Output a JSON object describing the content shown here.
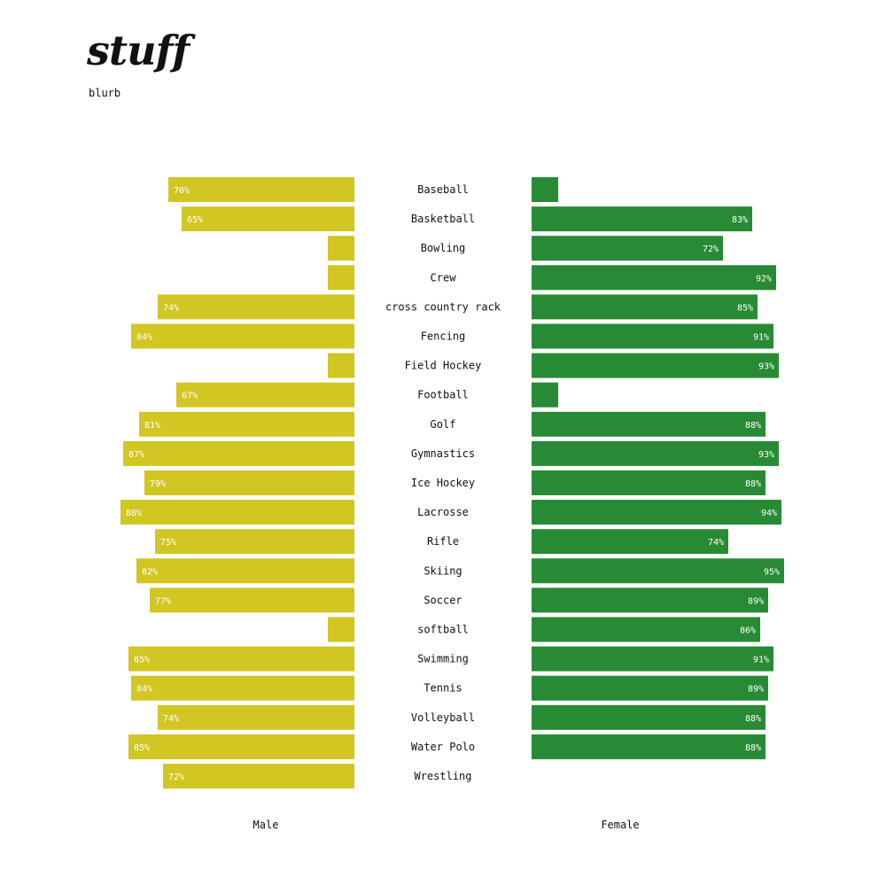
{
  "title": "stuff",
  "subtitle": "blurb",
  "chart_data": {
    "type": "bar",
    "orientation": "horizontal",
    "layout": "back-to-back",
    "categories": [
      "Baseball",
      "Basketball",
      "Bowling",
      "Crew",
      "cross country rack",
      "Fencing",
      "Field Hockey",
      "Football",
      "Golf",
      "Gymnastics",
      "Ice Hockey",
      "Lacrosse",
      "Rifle",
      "Skiing",
      "Soccer",
      "softball",
      "Swimming",
      "Tennis",
      "Volleyball",
      "Water Polo",
      "Wrestling"
    ],
    "series": [
      {
        "name": "Male",
        "color": "#d2c622",
        "values": [
          70,
          65,
          null,
          null,
          74,
          84,
          null,
          67,
          81,
          87,
          79,
          88,
          75,
          82,
          77,
          null,
          85,
          84,
          74,
          85,
          72
        ],
        "labels": [
          "70%",
          "65%",
          "",
          "",
          "74%",
          "84%",
          "",
          "67%",
          "81%",
          "87%",
          "79%",
          "88%",
          "75%",
          "82%",
          "77%",
          "",
          "85%",
          "84%",
          "74%",
          "85%",
          "72%"
        ]
      },
      {
        "name": "Female",
        "color": "#288a34",
        "values": [
          null,
          83,
          72,
          92,
          85,
          91,
          93,
          null,
          88,
          93,
          88,
          94,
          74,
          95,
          89,
          86,
          91,
          89,
          88,
          88,
          null
        ],
        "labels": [
          "",
          "83%",
          "72%",
          "92%",
          "85%",
          "91%",
          "93%",
          "",
          "88%",
          "93%",
          "88%",
          "94%",
          "74%",
          "95%",
          "89%",
          "86%",
          "91%",
          "89%",
          "88%",
          "88%",
          ""
        ]
      }
    ],
    "missing_marker": "short stub bar where no value is shown",
    "value_label_color": "#ffffff"
  }
}
